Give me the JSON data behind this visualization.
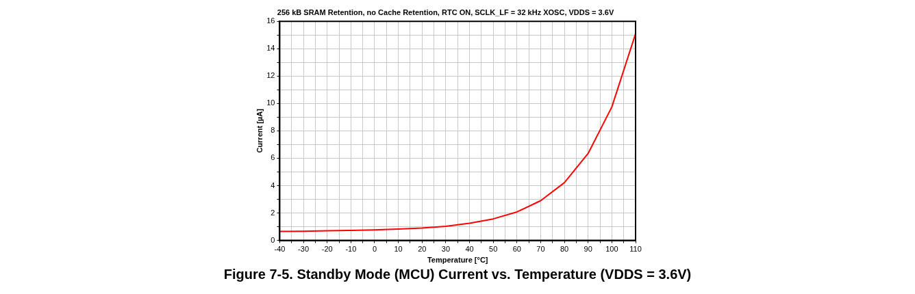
{
  "chart_data": {
    "type": "line",
    "title": "256 kB SRAM Retention, no Cache Retention, RTC ON, SCLK_LF = 32 kHz XOSC, VDDS = 3.6V",
    "xlabel": "Temperature [°C]",
    "ylabel": "Current [µA]",
    "annotations": [
      "Figure 7-5. Standby Mode (MCU) Current vs. Temperature (VDDS = 3.6V)"
    ],
    "x": [
      -40,
      -30,
      -20,
      -10,
      0,
      10,
      20,
      30,
      40,
      50,
      60,
      70,
      80,
      90,
      100,
      110
    ],
    "series": [
      {
        "color": "#ff0000",
        "values": [
          0.65,
          0.67,
          0.7,
          0.73,
          0.77,
          0.83,
          0.9,
          1.03,
          1.25,
          1.57,
          2.08,
          2.9,
          4.22,
          6.35,
          9.75,
          15.1
        ]
      }
    ],
    "xlim": [
      -40,
      110
    ],
    "xticks": [
      -40,
      {
        "value": -35,
        "label": null
      },
      -30,
      {
        "value": -25,
        "label": null
      },
      -20,
      {
        "value": -15,
        "label": null
      },
      -10,
      {
        "value": -5,
        "label": null
      },
      0,
      {
        "value": 5,
        "label": null
      },
      10,
      {
        "value": 15,
        "label": null
      },
      20,
      {
        "value": 25,
        "label": null
      },
      30,
      {
        "value": 35,
        "label": null
      },
      40,
      {
        "value": 45,
        "label": null
      },
      50,
      {
        "value": 55,
        "label": null
      },
      60,
      {
        "value": 65,
        "label": null
      },
      70,
      {
        "value": 75,
        "label": null
      },
      80,
      {
        "value": 85,
        "label": null
      },
      90,
      {
        "value": 95,
        "label": null
      },
      100,
      {
        "value": 105,
        "label": null
      },
      110
    ],
    "ylim": [
      0,
      16
    ],
    "yticks": [
      0,
      {
        "value": 1,
        "label": null
      },
      2,
      {
        "value": 3,
        "label": null
      },
      4,
      {
        "value": 5,
        "label": null
      },
      6,
      {
        "value": 7,
        "label": null
      },
      8,
      {
        "value": 9,
        "label": null
      },
      10,
      {
        "value": 11,
        "label": null
      },
      12,
      {
        "value": 13,
        "label": null
      },
      14,
      {
        "value": 15,
        "label": null
      },
      16
    ],
    "grid": true,
    "legend": false,
    "marker": "none",
    "line_style": "solid"
  }
}
